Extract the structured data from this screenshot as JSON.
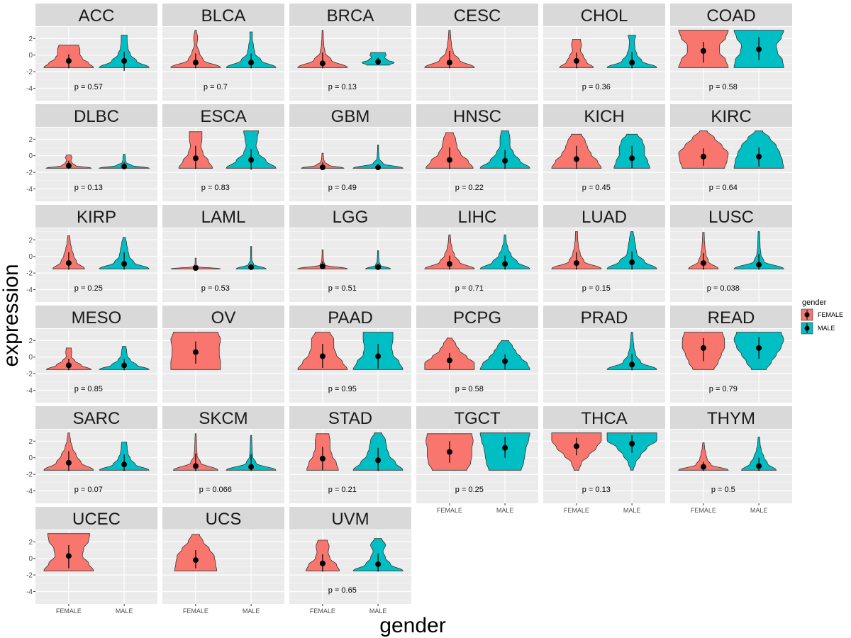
{
  "chart_data": {
    "type": "violin",
    "xlabel": "gender",
    "ylabel": "expression",
    "categories": [
      "FEMALE",
      "MALE"
    ],
    "y_ticks": [
      2,
      0,
      -2,
      -4
    ],
    "ylim": [
      -5.5,
      3.4
    ],
    "grid": true,
    "legend": {
      "title": "gender",
      "position": "right",
      "entries": [
        "FEMALE",
        "MALE"
      ]
    },
    "colors": {
      "FEMALE": "#F8766D",
      "MALE": "#00BFC4"
    },
    "violin_fields": [
      "min",
      "max",
      "point",
      "line_low",
      "line_high",
      "density_profile",
      "width_scale"
    ],
    "panels": [
      {
        "name": "ACC",
        "p": "p = 0.57",
        "FEMALE": [
          -1.5,
          1.2,
          -0.7,
          -1.6,
          0.1,
          [
            1,
            0.8,
            0.55,
            0.45,
            0.45,
            0.4
          ],
          1
        ],
        "MALE": [
          -1.5,
          2.4,
          -0.7,
          -1.9,
          0.4,
          [
            1,
            0.5,
            0.25,
            0.15,
            0.12,
            0.12
          ],
          1
        ]
      },
      {
        "name": "BLCA",
        "p": "p = 0.7",
        "FEMALE": [
          -1.5,
          3.0,
          -0.9,
          -1.6,
          0.2,
          [
            1,
            0.3,
            0.15,
            0.05,
            0.08,
            0.03
          ],
          1
        ],
        "MALE": [
          -1.5,
          2.8,
          -0.9,
          -1.6,
          0.2,
          [
            1,
            0.4,
            0.15,
            0.1,
            0.05,
            0.05
          ],
          1
        ]
      },
      {
        "name": "BRCA",
        "p": "p = 0.13",
        "FEMALE": [
          -1.5,
          3.0,
          -1.0,
          -1.6,
          0.3,
          [
            1,
            0.35,
            0.1,
            0.05,
            0.03,
            0.02
          ],
          1
        ],
        "MALE": [
          -1.2,
          0.3,
          -0.8,
          -1.2,
          -0.3,
          [
            0.7,
            1,
            0.6,
            0.4,
            0.5,
            0.45
          ],
          0.65
        ]
      },
      {
        "name": "CESC",
        "p": "",
        "FEMALE": [
          -1.5,
          3.0,
          -0.9,
          -1.6,
          0.5,
          [
            1,
            0.4,
            0.15,
            0.08,
            0.05,
            0.03
          ],
          1
        ],
        "MALE": null
      },
      {
        "name": "CHOL",
        "p": "p = 0.36",
        "FEMALE": [
          -1.5,
          1.9,
          -0.7,
          -1.6,
          0.3,
          [
            0.85,
            0.5,
            0.35,
            0.2,
            0.25,
            0.2
          ],
          0.8
        ],
        "MALE": [
          -1.5,
          2.4,
          -0.9,
          -1.6,
          0.4,
          [
            1,
            0.4,
            0.2,
            0.12,
            0.1,
            0.15
          ],
          1
        ]
      },
      {
        "name": "COAD",
        "p": "p = 0.58",
        "FEMALE": [
          -1.5,
          3.0,
          0.5,
          -0.9,
          1.6,
          [
            1,
            0.9,
            0.65,
            0.65,
            0.9,
            1
          ],
          1
        ],
        "MALE": [
          -1.5,
          3.0,
          0.7,
          -0.6,
          2.2,
          [
            1,
            0.95,
            0.75,
            0.7,
            0.9,
            1
          ],
          1
        ]
      },
      {
        "name": "DLBC",
        "p": "p = 0.13",
        "FEMALE": [
          -1.5,
          0.1,
          -1.2,
          -1.6,
          -0.6,
          [
            1,
            0.3,
            0.15,
            0.1,
            0.15,
            0.1
          ],
          0.9
        ],
        "MALE": [
          -1.5,
          0.2,
          -1.3,
          -1.6,
          -0.8,
          [
            1,
            0.3,
            0.08,
            0.05,
            0.05,
            0.03
          ],
          1
        ]
      },
      {
        "name": "ESCA",
        "p": "p = 0.83",
        "FEMALE": [
          -1.5,
          2.9,
          -0.3,
          -1.6,
          1.2,
          [
            0.8,
            0.6,
            0.35,
            0.25,
            0.3,
            0.3
          ],
          0.85
        ],
        "MALE": [
          -1.5,
          3.0,
          -0.5,
          -1.7,
          0.8,
          [
            1,
            0.6,
            0.3,
            0.2,
            0.25,
            0.3
          ],
          1
        ]
      },
      {
        "name": "GBM",
        "p": "p = 0.49",
        "FEMALE": [
          -1.5,
          0.3,
          -1.4,
          -1.6,
          -0.8,
          [
            1,
            0.3,
            0.1,
            0.05,
            0.04,
            0.03
          ],
          0.85
        ],
        "MALE": [
          -1.5,
          1.3,
          -1.4,
          -1.6,
          -1.0,
          [
            1,
            0.2,
            0.05,
            0.03,
            0.02,
            0.02
          ],
          1
        ]
      },
      {
        "name": "HNSC",
        "p": "p = 0.22",
        "FEMALE": [
          -1.5,
          2.8,
          -0.5,
          -1.6,
          1.0,
          [
            0.95,
            0.75,
            0.45,
            0.3,
            0.25,
            0.15
          ],
          1
        ],
        "MALE": [
          -1.5,
          3.0,
          -0.6,
          -1.6,
          0.7,
          [
            1,
            0.6,
            0.35,
            0.2,
            0.2,
            0.15
          ],
          1
        ]
      },
      {
        "name": "KICH",
        "p": "p = 0.45",
        "FEMALE": [
          -1.5,
          2.6,
          -0.4,
          -1.6,
          1.2,
          [
            1,
            0.85,
            0.6,
            0.45,
            0.35,
            0.2
          ],
          1
        ],
        "MALE": [
          -1.5,
          2.6,
          -0.3,
          -1.5,
          1.2,
          [
            0.85,
            0.75,
            0.6,
            0.6,
            0.5,
            0.25
          ],
          0.85
        ]
      },
      {
        "name": "KIRC",
        "p": "p = 0.64",
        "FEMALE": [
          -1.5,
          3.0,
          -0.1,
          -1.2,
          0.9,
          [
            0.85,
            0.95,
            1,
            0.75,
            0.45,
            0.15
          ],
          1
        ],
        "MALE": [
          -1.5,
          3.0,
          -0.1,
          -1.3,
          1.0,
          [
            1,
            0.95,
            0.85,
            0.7,
            0.45,
            0.15
          ],
          1
        ]
      },
      {
        "name": "KIRP",
        "p": "p = 0.25",
        "FEMALE": [
          -1.5,
          2.5,
          -0.8,
          -1.6,
          0.5,
          [
            0.8,
            0.4,
            0.25,
            0.15,
            0.08,
            0.05
          ],
          0.8
        ],
        "MALE": [
          -1.5,
          2.3,
          -0.9,
          -1.6,
          0.5,
          [
            1,
            0.4,
            0.2,
            0.15,
            0.1,
            0.05
          ],
          1
        ]
      },
      {
        "name": "LAML",
        "p": "p = 0.53",
        "FEMALE": [
          -1.5,
          -0.2,
          -1.4,
          -1.5,
          -1.3,
          [
            1,
            0.1,
            0.03,
            0.02,
            0.02,
            0.02
          ],
          1
        ],
        "MALE": [
          -1.5,
          1.2,
          -1.3,
          -1.5,
          -1.1,
          [
            0.6,
            0.1,
            0.03,
            0.02,
            0.02,
            0.02
          ],
          1
        ]
      },
      {
        "name": "LGG",
        "p": "p = 0.51",
        "FEMALE": [
          -1.5,
          0.8,
          -1.2,
          -1.5,
          -0.6,
          [
            1,
            0.1,
            0.04,
            0.03,
            0.02,
            0.02
          ],
          1
        ],
        "MALE": [
          -1.5,
          0.7,
          -1.3,
          -1.5,
          -0.9,
          [
            0.5,
            0.1,
            0.04,
            0.03,
            0.02,
            0.02
          ],
          1
        ]
      },
      {
        "name": "LIHC",
        "p": "p = 0.71",
        "FEMALE": [
          -1.5,
          2.6,
          -0.9,
          -1.6,
          0.1,
          [
            1,
            0.4,
            0.2,
            0.1,
            0.05,
            0.03
          ],
          1
        ],
        "MALE": [
          -1.5,
          2.6,
          -0.9,
          -1.6,
          0.1,
          [
            1,
            0.5,
            0.25,
            0.12,
            0.05,
            0.03
          ],
          1
        ]
      },
      {
        "name": "LUAD",
        "p": "p = 0.15",
        "FEMALE": [
          -1.5,
          3.0,
          -0.8,
          -1.6,
          0.5,
          [
            1,
            0.3,
            0.15,
            0.08,
            0.05,
            0.04
          ],
          1
        ],
        "MALE": [
          -1.5,
          3.0,
          -0.7,
          -1.6,
          0.6,
          [
            1,
            0.5,
            0.2,
            0.15,
            0.1,
            0.05
          ],
          1
        ]
      },
      {
        "name": "LUSC",
        "p": "p = 0.038",
        "FEMALE": [
          -1.5,
          2.9,
          -0.8,
          -1.6,
          0.4,
          [
            0.6,
            0.2,
            0.1,
            0.06,
            0.04,
            0.03
          ],
          1
        ],
        "MALE": [
          -1.5,
          3.0,
          -1.0,
          -1.6,
          0.3,
          [
            1,
            0.2,
            0.08,
            0.05,
            0.04,
            0.03
          ],
          1
        ]
      },
      {
        "name": "MESO",
        "p": "p = 0.85",
        "FEMALE": [
          -1.5,
          1.1,
          -1.0,
          -1.6,
          -0.2,
          [
            0.9,
            0.5,
            0.25,
            0.1,
            0.12,
            0.1
          ],
          1
        ],
        "MALE": [
          -1.5,
          1.3,
          -1.0,
          -1.6,
          -0.2,
          [
            1,
            0.5,
            0.25,
            0.12,
            0.1,
            0.07
          ],
          1
        ]
      },
      {
        "name": "OV",
        "p": "",
        "FEMALE": [
          -1.5,
          3.0,
          0.6,
          -0.8,
          1.9,
          [
            1,
            1,
            0.95,
            0.95,
            1,
            0.9
          ],
          1
        ],
        "MALE": null
      },
      {
        "name": "PAAD",
        "p": "p = 0.95",
        "FEMALE": [
          -1.5,
          3.0,
          0.1,
          -1.3,
          1.6,
          [
            1,
            0.8,
            0.55,
            0.45,
            0.45,
            0.3
          ],
          1
        ],
        "MALE": [
          -1.5,
          3.0,
          0.1,
          -1.4,
          1.6,
          [
            1,
            0.85,
            0.6,
            0.55,
            0.6,
            0.6
          ],
          1
        ]
      },
      {
        "name": "PCPG",
        "p": "p = 0.58",
        "FEMALE": [
          -1.5,
          2.3,
          -0.4,
          -1.5,
          0.5,
          [
            1,
            1,
            0.7,
            0.4,
            0.25,
            0.1
          ],
          1
        ],
        "MALE": [
          -1.5,
          2.0,
          -0.5,
          -1.5,
          0.3,
          [
            1,
            0.9,
            0.65,
            0.45,
            0.3,
            0.15
          ],
          1
        ]
      },
      {
        "name": "PRAD",
        "p": "",
        "FEMALE": null,
        "MALE": [
          -1.5,
          3.0,
          -0.9,
          -1.6,
          0.4,
          [
            1,
            0.35,
            0.15,
            0.08,
            0.05,
            0.03
          ],
          1
        ]
      },
      {
        "name": "READ",
        "p": "p = 0.79",
        "FEMALE": [
          -1.5,
          3.0,
          1.1,
          -0.5,
          2.3,
          [
            0.5,
            0.7,
            0.85,
            1,
            1,
            0.9
          ],
          0.85
        ],
        "MALE": [
          -1.5,
          3.0,
          1.1,
          -0.2,
          2.4,
          [
            0.3,
            0.5,
            0.7,
            0.9,
            1,
            0.9
          ],
          1
        ]
      },
      {
        "name": "SARC",
        "p": "p = 0.07",
        "FEMALE": [
          -1.5,
          3.0,
          -0.6,
          -1.6,
          0.8,
          [
            1,
            0.5,
            0.3,
            0.15,
            0.07,
            0.03
          ],
          1
        ],
        "MALE": [
          -1.5,
          1.9,
          -0.8,
          -1.6,
          0.4,
          [
            1,
            0.45,
            0.25,
            0.15,
            0.12,
            0.1
          ],
          1
        ]
      },
      {
        "name": "SKCM",
        "p": "p = 0.066",
        "FEMALE": [
          -1.5,
          2.9,
          -1.0,
          -1.6,
          0.5,
          [
            0.9,
            0.2,
            0.06,
            0.04,
            0.03,
            0.02
          ],
          1
        ],
        "MALE": [
          -1.5,
          2.7,
          -1.1,
          -1.6,
          0.4,
          [
            1,
            0.2,
            0.06,
            0.04,
            0.03,
            0.02
          ],
          1
        ]
      },
      {
        "name": "STAD",
        "p": "p = 0.21",
        "FEMALE": [
          -1.5,
          2.9,
          -0.1,
          -1.5,
          1.3,
          [
            0.75,
            0.65,
            0.45,
            0.35,
            0.35,
            0.3
          ],
          0.85
        ],
        "MALE": [
          -1.5,
          3.0,
          -0.3,
          -1.6,
          1.2,
          [
            1,
            0.7,
            0.45,
            0.35,
            0.3,
            0.15
          ],
          1
        ]
      },
      {
        "name": "TGCT",
        "p": "p = 0.25",
        "FEMALE": [
          -1.5,
          2.9,
          0.7,
          -0.6,
          2.0,
          [
            0.7,
            0.85,
            0.9,
            0.9,
            0.95,
            0.9
          ],
          1
        ],
        "MALE": [
          -1.5,
          3.0,
          1.2,
          0,
          2.5,
          [
            0.65,
            0.75,
            0.8,
            0.85,
            0.95,
            1
          ],
          1
        ]
      },
      {
        "name": "THCA",
        "p": "p = 0.13",
        "FEMALE": [
          -1.5,
          3.0,
          1.4,
          0.3,
          2.4,
          [
            0.1,
            0.2,
            0.5,
            0.8,
            1,
            1
          ],
          1
        ],
        "MALE": [
          -1.5,
          3.0,
          1.7,
          0.6,
          2.7,
          [
            0.05,
            0.15,
            0.35,
            0.6,
            1,
            1
          ],
          1
        ]
      },
      {
        "name": "THYM",
        "p": "p = 0.5",
        "FEMALE": [
          -1.5,
          1.8,
          -1.1,
          -1.6,
          -0.5,
          [
            1,
            0.3,
            0.15,
            0.1,
            0.05,
            0.03
          ],
          1
        ],
        "MALE": [
          -1.5,
          2.5,
          -1.0,
          -1.6,
          0,
          [
            0.7,
            0.35,
            0.2,
            0.1,
            0.05,
            0.03
          ],
          1
        ]
      },
      {
        "name": "UCEC",
        "p": "",
        "FEMALE": [
          -1.5,
          3.0,
          0.3,
          -1.2,
          1.6,
          [
            1,
            0.8,
            0.55,
            0.6,
            0.8,
            0.85
          ],
          1
        ],
        "MALE": null
      },
      {
        "name": "UCS",
        "p": "",
        "FEMALE": [
          -1.5,
          2.9,
          -0.2,
          -1.2,
          1.0,
          [
            0.85,
            0.8,
            0.75,
            0.55,
            0.3,
            0.15
          ],
          1
        ],
        "MALE": null
      },
      {
        "name": "UVM",
        "p": "p = 0.65",
        "FEMALE": [
          -1.5,
          2.2,
          -0.6,
          -1.6,
          0.5,
          [
            0.9,
            0.75,
            0.4,
            0.3,
            0.35,
            0.25
          ],
          0.75
        ],
        "MALE": [
          -1.5,
          2.4,
          -0.7,
          -1.6,
          0.6,
          [
            1,
            0.5,
            0.3,
            0.2,
            0.3,
            0.15
          ],
          1
        ]
      }
    ]
  }
}
